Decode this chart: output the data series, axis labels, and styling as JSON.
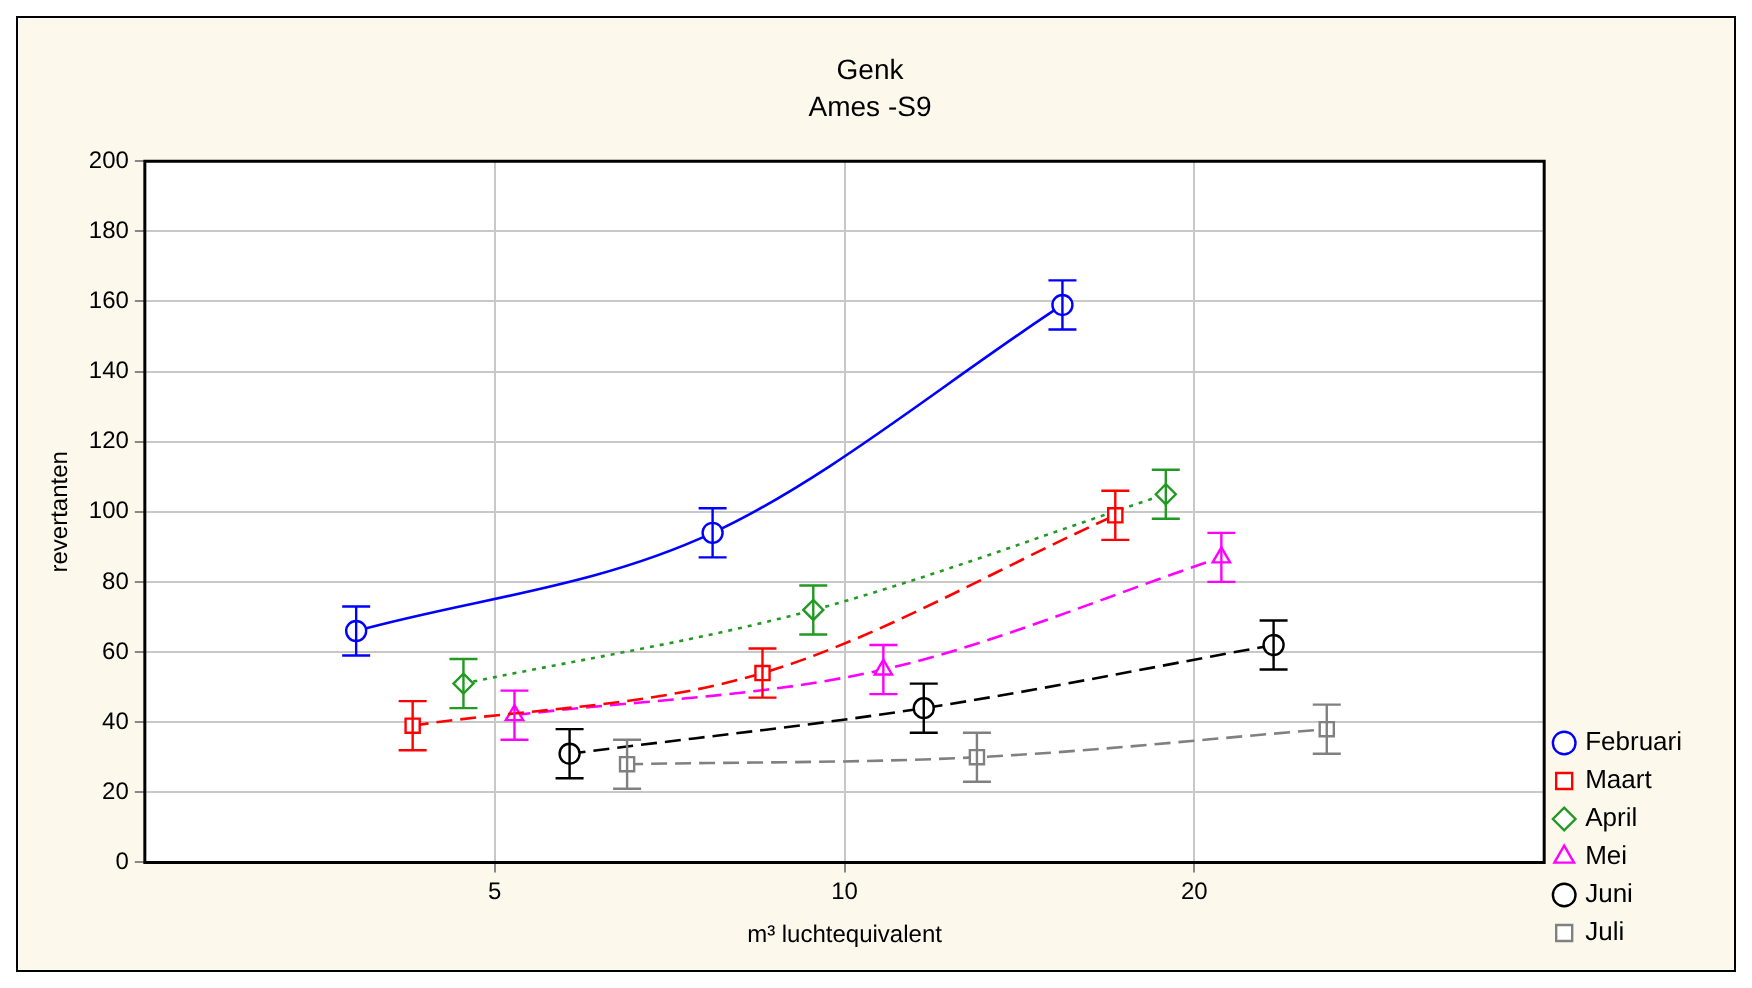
{
  "chart_data": {
    "type": "line",
    "title": "Genk",
    "subtitle": "Ames -S9",
    "xlabel": "m³ luchtequivalent",
    "ylabel": "revertanten",
    "log": "x",
    "xlim": [
      2.5,
      40
    ],
    "xticks": [
      5,
      10,
      20
    ],
    "ylim": [
      0,
      200
    ],
    "yticks": [
      0,
      20,
      40,
      60,
      80,
      100,
      120,
      140,
      160,
      180,
      200
    ],
    "grid": true,
    "legend": "bottom right",
    "series": [
      {
        "name": "Februari",
        "color": "#0000ff",
        "marker": "circle",
        "line_style": "solid",
        "x": [
          3.8,
          7.7,
          15.4
        ],
        "values": [
          66,
          94,
          159
        ],
        "errors": [
          7,
          7,
          7
        ]
      },
      {
        "name": "Maart",
        "color": "#ff0000",
        "marker": "square",
        "line_style": "dashed",
        "x": [
          4.25,
          8.5,
          17.1
        ],
        "values": [
          39,
          54,
          99
        ],
        "errors": [
          7,
          7,
          7
        ]
      },
      {
        "name": "April",
        "color": "#229922",
        "marker": "diamond",
        "line_style": "dotted",
        "x": [
          4.7,
          9.4,
          18.9
        ],
        "values": [
          51,
          72,
          105
        ],
        "errors": [
          7,
          7,
          7
        ]
      },
      {
        "name": "Mei",
        "color": "#ff00ff",
        "marker": "triangle",
        "line_style": "dashed",
        "x": [
          5.2,
          10.8,
          21.1
        ],
        "values": [
          42,
          55,
          87
        ],
        "errors": [
          7,
          7,
          7
        ]
      },
      {
        "name": "Juni",
        "color": "#000000",
        "marker": "circle",
        "line_style": "dashed",
        "x": [
          5.8,
          11.7,
          23.4
        ],
        "values": [
          31,
          44,
          62
        ],
        "errors": [
          7,
          7,
          7
        ]
      },
      {
        "name": "Juli",
        "color": "#808080",
        "marker": "square",
        "line_style": "dashed",
        "x": [
          6.5,
          13.0,
          26.0
        ],
        "values": [
          28,
          30,
          38
        ],
        "errors": [
          7,
          7,
          7
        ]
      }
    ]
  }
}
